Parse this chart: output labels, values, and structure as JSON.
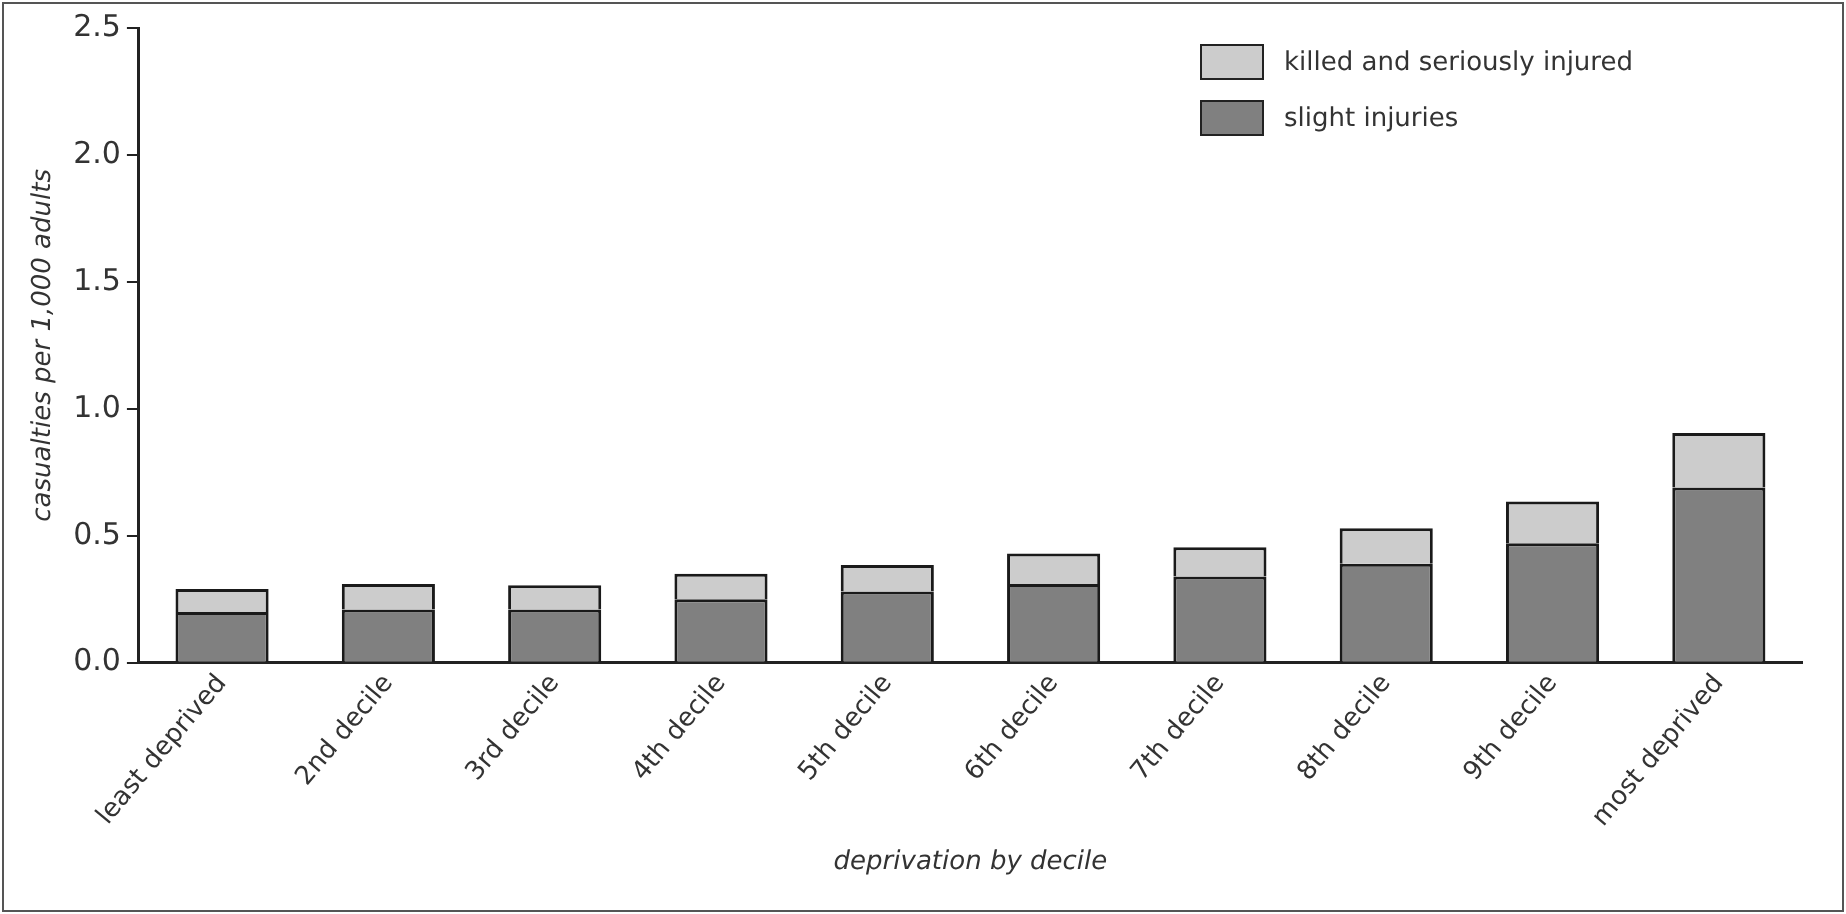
{
  "chart_data": {
    "type": "bar",
    "stacked": true,
    "xlabel": "deprivation by decile",
    "ylabel": "casualties per 1,000 adults",
    "categories": [
      "least deprived",
      "2nd decile",
      "3rd decile",
      "4th decile",
      "5th decile",
      "6th decile",
      "7th decile",
      "8th decile",
      "9th decile",
      "most deprived"
    ],
    "series": [
      {
        "name": "slight injuries",
        "color": "#808080",
        "values": [
          0.2,
          0.21,
          0.21,
          0.25,
          0.28,
          0.31,
          0.34,
          0.39,
          0.47,
          0.69
        ]
      },
      {
        "name": "killed and seriously injured",
        "color": "#cccccc",
        "values": [
          0.09,
          0.1,
          0.095,
          0.1,
          0.105,
          0.12,
          0.115,
          0.14,
          0.165,
          0.215
        ]
      }
    ],
    "ylim": [
      0,
      2.5
    ],
    "yticks": [
      {
        "value": 0,
        "label": "0.0"
      },
      {
        "value": 0.5,
        "label": "0.5"
      },
      {
        "value": 1,
        "label": "1.0"
      },
      {
        "value": 1.5,
        "label": "1.5"
      },
      {
        "value": 2,
        "label": "2.0"
      },
      {
        "value": 2.5,
        "label": "2.5"
      }
    ],
    "grid": false,
    "legend": "top right"
  }
}
